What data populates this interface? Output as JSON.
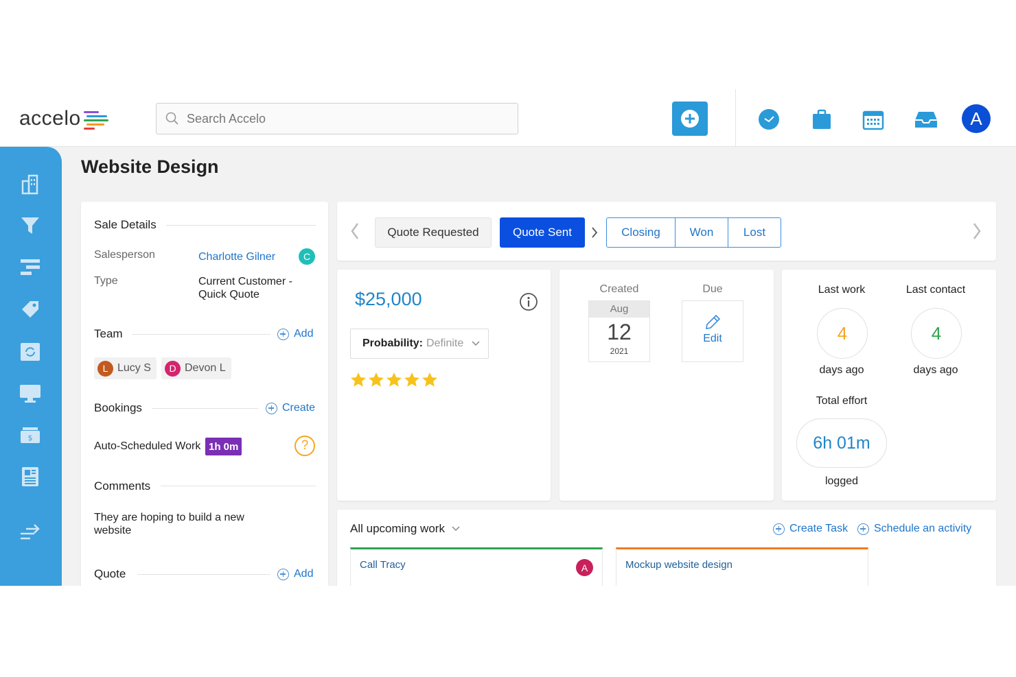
{
  "brand": {
    "name": "accelo",
    "colors": [
      "#e63b3b",
      "#f59a23",
      "#2ea44f",
      "#8a4fd8",
      "#2b9ad8"
    ]
  },
  "search": {
    "placeholder": "Search Accelo",
    "icon": "search-icon"
  },
  "topbar": {
    "add_icon": "plus-icon",
    "icons": [
      "clock-icon",
      "briefcase-icon",
      "calendar-icon",
      "inbox-icon"
    ],
    "avatar": "A"
  },
  "sidebar": {
    "items": [
      "dashboard-icon",
      "sales-funnel-icon",
      "projects-icon",
      "tickets-icon",
      "retainers-icon",
      "activities-icon",
      "invoices-icon",
      "reports-icon",
      "collapse-icon"
    ]
  },
  "page": {
    "title": "Website Design"
  },
  "sale_details": {
    "title": "Sale Details",
    "salesperson_label": "Salesperson",
    "salesperson": "Charlotte Gilner",
    "salesperson_initial": "C",
    "type_label": "Type",
    "type_line1": "Current Customer -",
    "type_line2": "Quick Quote",
    "team_title": "Team",
    "team_add": "Add",
    "team": [
      {
        "initial": "L",
        "name": "Lucy S",
        "color": "#c25a1f"
      },
      {
        "initial": "D",
        "name": "Devon L",
        "color": "#d4246d"
      }
    ],
    "bookings_title": "Bookings",
    "bookings_action": "Create",
    "booking_label": "Auto-Scheduled Work",
    "booking_badge": "1h 0m",
    "comments_title": "Comments",
    "comment_line1": "They are hoping to build a new",
    "comment_line2": "website",
    "quote_title": "Quote",
    "quote_add": "Add"
  },
  "stages": {
    "items": [
      "Quote Requested",
      "Quote Sent",
      "Closing",
      "Won",
      "Lost"
    ],
    "active": "Quote Sent"
  },
  "value": {
    "amount": "$25,000",
    "probability_label": "Probability:",
    "probability_value": "Definite",
    "stars": 5
  },
  "dates": {
    "created_label": "Created",
    "due_label": "Due",
    "month": "Aug",
    "day": "12",
    "year": "2021",
    "edit": "Edit"
  },
  "activity": {
    "last_work_label": "Last work",
    "last_work_value": "4",
    "last_work_suffix": "days ago",
    "last_contact_label": "Last contact",
    "last_contact_value": "4",
    "last_contact_suffix": "days ago",
    "total_effort_label": "Total effort",
    "total_effort_value": "6h 01m",
    "total_effort_suffix": "logged"
  },
  "upcoming": {
    "title": "All upcoming work",
    "create_task": "Create Task",
    "schedule_activity": "Schedule an activity",
    "cards": [
      {
        "title": "Call Tracy",
        "assignee": "A",
        "accent": "#2ea44f"
      },
      {
        "title": "Mockup website design",
        "accent": "#f07a1f"
      }
    ]
  }
}
